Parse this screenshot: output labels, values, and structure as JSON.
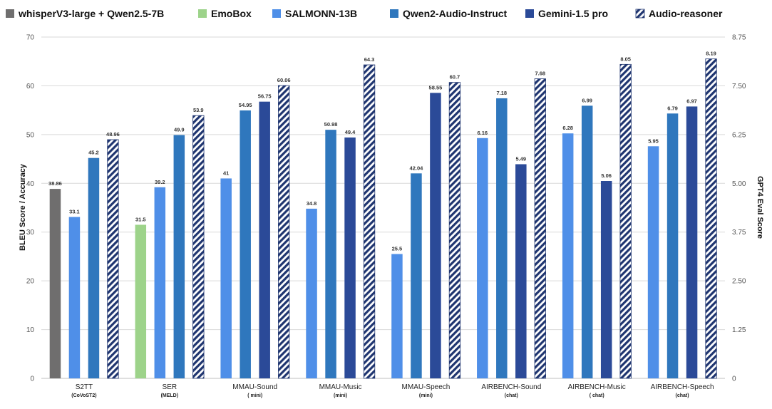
{
  "chart_data": {
    "type": "bar",
    "title": "",
    "ylabel": "BLEU Score / Accuracy",
    "y2label": "GPT4 Eval Score",
    "ylim": [
      0,
      70
    ],
    "y2lim": [
      0,
      8.75
    ],
    "yticks": [
      0,
      10,
      20,
      30,
      40,
      50,
      60,
      70
    ],
    "y2ticks": [
      "0",
      "1.25",
      "2.50",
      "3.75",
      "5.00",
      "6.25",
      "7.50",
      "8.75"
    ],
    "grid": true,
    "legend": "top",
    "legend_entries": [
      {
        "name": "whisperV3-large + Qwen2.5-7B",
        "color": "#6f6e6e",
        "hatched": false
      },
      {
        "name": "EmoBox",
        "color": "#9dd38a",
        "hatched": false
      },
      {
        "name": "SALMONN-13B",
        "color": "#4f8fe8",
        "hatched": false
      },
      {
        "name": "Qwen2-Audio-Instruct",
        "color": "#2f77bd",
        "hatched": false
      },
      {
        "name": "Gemini-1.5 pro",
        "color": "#2b4a98",
        "hatched": false
      },
      {
        "name": "Audio-reasoner",
        "color": "#1f3570",
        "hatched": true
      }
    ],
    "categories": [
      {
        "name": "S2TT",
        "sub": "(CoVoST2)",
        "axis": "left"
      },
      {
        "name": "SER",
        "sub": "(MELD)",
        "axis": "left"
      },
      {
        "name": "MMAU-Sound",
        "sub": "( mini)",
        "axis": "left"
      },
      {
        "name": "MMAU-Music",
        "sub": "(mini)",
        "axis": "left"
      },
      {
        "name": "MMAU-Speech",
        "sub": "(mini)",
        "axis": "left"
      },
      {
        "name": "AIRBENCH-Sound",
        "sub": "(chat)",
        "axis": "right"
      },
      {
        "name": "AIRBENCH-Music",
        "sub": "( chat)",
        "axis": "right"
      },
      {
        "name": "AIRBENCH-Speech",
        "sub": "(chat)",
        "axis": "right"
      }
    ],
    "groups": [
      [
        {
          "series": 0,
          "value": 38.86,
          "label": "38.86"
        },
        {
          "series": 2,
          "value": 33.1,
          "label": "33.1"
        },
        {
          "series": 3,
          "value": 45.2,
          "label": "45.2"
        },
        {
          "series": 5,
          "value": 48.96,
          "label": "48.96"
        }
      ],
      [
        {
          "series": 1,
          "value": 31.5,
          "label": "31.5"
        },
        {
          "series": 2,
          "value": 39.2,
          "label": "39.2"
        },
        {
          "series": 3,
          "value": 49.9,
          "label": "49.9"
        },
        {
          "series": 5,
          "value": 53.9,
          "label": "53.9"
        }
      ],
      [
        {
          "series": 2,
          "value": 41,
          "label": "41"
        },
        {
          "series": 3,
          "value": 54.95,
          "label": "54.95"
        },
        {
          "series": 4,
          "value": 56.75,
          "label": "56.75"
        },
        {
          "series": 5,
          "value": 60.06,
          "label": "60.06"
        }
      ],
      [
        {
          "series": 2,
          "value": 34.8,
          "label": "34.8"
        },
        {
          "series": 3,
          "value": 50.98,
          "label": "50.98"
        },
        {
          "series": 4,
          "value": 49.4,
          "label": "49.4"
        },
        {
          "series": 5,
          "value": 64.3,
          "label": "64.3"
        }
      ],
      [
        {
          "series": 2,
          "value": 25.5,
          "label": "25.5"
        },
        {
          "series": 3,
          "value": 42.04,
          "label": "42.04"
        },
        {
          "series": 4,
          "value": 58.55,
          "label": "58.55"
        },
        {
          "series": 5,
          "value": 60.7,
          "label": "60.7"
        }
      ],
      [
        {
          "series": 2,
          "value": 6.16,
          "label": "6.16"
        },
        {
          "series": 3,
          "value": 7.18,
          "label": "7.18"
        },
        {
          "series": 4,
          "value": 5.49,
          "label": "5.49"
        },
        {
          "series": 5,
          "value": 7.68,
          "label": "7.68"
        }
      ],
      [
        {
          "series": 2,
          "value": 6.28,
          "label": "6.28"
        },
        {
          "series": 3,
          "value": 6.99,
          "label": "6.99"
        },
        {
          "series": 4,
          "value": 5.06,
          "label": "5.06"
        },
        {
          "series": 5,
          "value": 8.05,
          "label": "8.05"
        }
      ],
      [
        {
          "series": 2,
          "value": 5.95,
          "label": "5.95"
        },
        {
          "series": 3,
          "value": 6.79,
          "label": "6.79"
        },
        {
          "series": 4,
          "value": 6.97,
          "label": "6.97"
        },
        {
          "series": 5,
          "value": 8.19,
          "label": "8.19"
        }
      ]
    ]
  }
}
